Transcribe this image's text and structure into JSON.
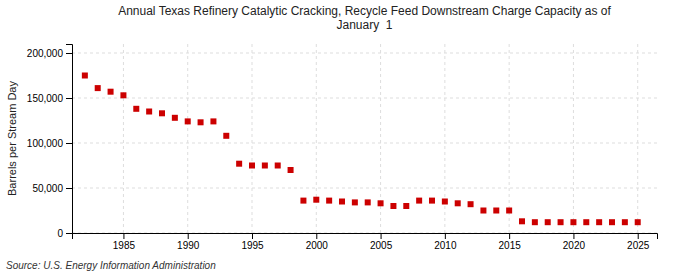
{
  "chart_data": {
    "type": "scatter",
    "title": "Annual Texas Refinery Catalytic Cracking, Recycle Feed Downstream Charge Capacity as of\nJanuary  1",
    "y_label": "Barrels per Stream Day",
    "source": "Source: U.S. Energy Information Administration",
    "color": "#cc0000",
    "marker": "square",
    "grid": true,
    "x": [
      1982,
      1983,
      1984,
      1985,
      1986,
      1987,
      1988,
      1989,
      1990,
      1991,
      1992,
      1993,
      1994,
      1995,
      1996,
      1997,
      1998,
      1999,
      2000,
      2001,
      2002,
      2003,
      2004,
      2005,
      2006,
      2007,
      2008,
      2009,
      2010,
      2011,
      2012,
      2013,
      2014,
      2015,
      2016,
      2017,
      2018,
      2019,
      2020,
      2021,
      2022,
      2023,
      2024,
      2025
    ],
    "values": [
      175000,
      161000,
      157000,
      153000,
      138000,
      135000,
      133000,
      128000,
      124000,
      123000,
      124000,
      108000,
      77000,
      75000,
      75000,
      75000,
      70000,
      36000,
      37000,
      36000,
      35000,
      34000,
      34000,
      33000,
      30000,
      30000,
      36000,
      36000,
      35000,
      33000,
      32000,
      25000,
      25000,
      25000,
      13000,
      12000,
      12000,
      12000,
      12000,
      12000,
      12000,
      12000,
      12000,
      12000
    ],
    "xlim": [
      1981,
      2026.5
    ],
    "xticks": [
      1985,
      1990,
      1995,
      2000,
      2005,
      2010,
      2015,
      2020,
      2025
    ],
    "ylim": [
      0,
      210000
    ],
    "yticks": [
      0,
      {
        "value": 50000,
        "label": "50,000"
      },
      {
        "value": 100000,
        "label": "100,000"
      },
      {
        "value": 150000,
        "label": "150,000"
      },
      {
        "value": 200000,
        "label": "200,000"
      }
    ]
  }
}
